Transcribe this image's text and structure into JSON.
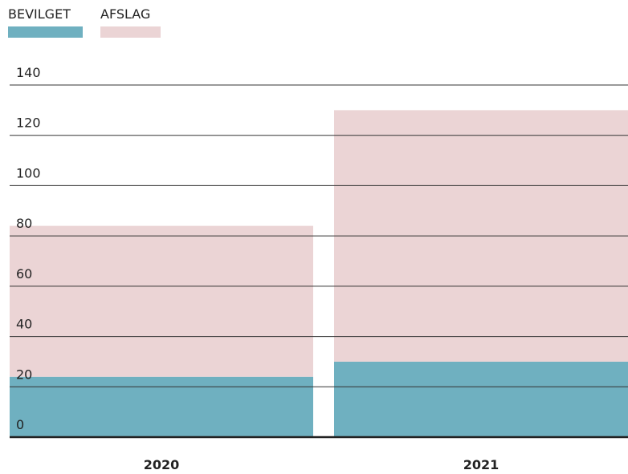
{
  "chart_data": {
    "type": "stacked_bar",
    "categories": [
      "2020",
      "2021"
    ],
    "series": [
      {
        "name": "BEVILGET",
        "color": "#6fb0c0",
        "values": [
          24,
          30
        ]
      },
      {
        "name": "AFSLAG",
        "color": "#ebd4d5",
        "values": [
          60,
          100
        ]
      }
    ],
    "ylim": [
      0,
      140
    ],
    "yticks": [
      0,
      20,
      40,
      60,
      80,
      100,
      120,
      140
    ],
    "grid": true
  }
}
